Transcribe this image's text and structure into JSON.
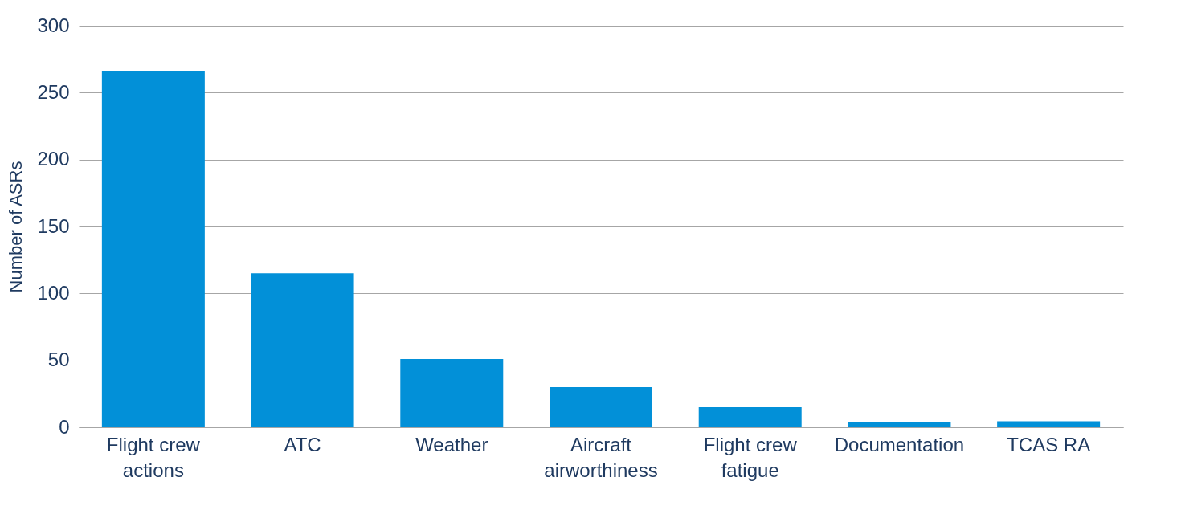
{
  "chart_data": {
    "type": "bar",
    "ylabel": "Number of ASRs",
    "categories": [
      "Flight crew actions",
      "ATC",
      "Weather",
      "Aircraft airworthiness",
      "Flight crew fatigue",
      "Documentation",
      "TCAS RA"
    ],
    "values": [
      266,
      115,
      51,
      30,
      15,
      4,
      4.5
    ],
    "color": "#0290d8",
    "ylim": [
      0,
      300
    ],
    "yticks": [
      0,
      50,
      100,
      150,
      200,
      250,
      300
    ],
    "grid": "y"
  }
}
